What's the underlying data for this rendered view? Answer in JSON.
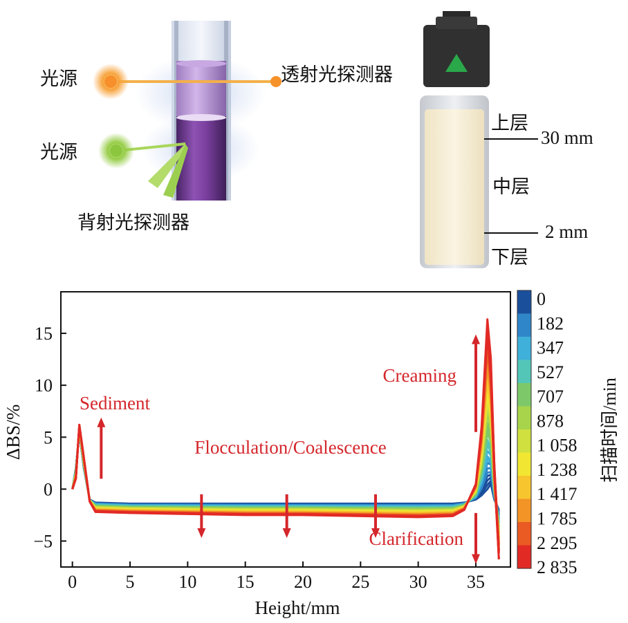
{
  "schematic": {
    "light_source_top": "光源",
    "light_source_bottom": "光源",
    "transmission_detector": "透射光探测器",
    "backscatter_detector": "背射光探测器",
    "vial_layers": {
      "upper": "上层",
      "middle": "中层",
      "lower": "下层",
      "mark_30": "30 mm",
      "mark_2": "2 mm"
    },
    "colors": {
      "tube_liquid": "#7a3f9e",
      "source_orange": "#f5922a",
      "source_green": "#8cc63f",
      "cap": "#333333",
      "cap_triangle": "#2aa84a",
      "emulsion": "#f7f0d8"
    }
  },
  "chart_data": {
    "type": "line",
    "xlabel": "Height/mm",
    "ylabel": "ΔBS/%",
    "xlim": [
      -1,
      38
    ],
    "ylim": [
      -7.5,
      19
    ],
    "x_ticks": [
      0,
      5,
      10,
      15,
      20,
      25,
      30,
      35
    ],
    "y_ticks": [
      -5,
      0,
      5,
      10,
      15
    ],
    "x_tick_labels": [
      "0",
      "5",
      "10",
      "15",
      "20",
      "25",
      "30",
      "35"
    ],
    "y_tick_labels": [
      "−5",
      "0",
      "5",
      "10",
      "15"
    ],
    "annotations": [
      {
        "text": "Sediment",
        "arrow": "up",
        "x": 2.5
      },
      {
        "text": "Flocculation/Coalescence",
        "arrow": "down",
        "x": [
          11.2,
          18.6,
          26.3
        ]
      },
      {
        "text": "Creaming",
        "arrow": "up",
        "x": 35
      },
      {
        "text": "Clarification",
        "arrow": "down",
        "x": 35
      }
    ],
    "colorbar": {
      "title": "扫描时间/min",
      "labels": [
        "0",
        "182",
        "347",
        "527",
        "707",
        "878",
        "1 058",
        "1 238",
        "1 417",
        "1 785",
        "2 295",
        "2 835"
      ],
      "colors": [
        "#1a4f9c",
        "#2f86c9",
        "#3fb0d9",
        "#53c6b8",
        "#7dc96a",
        "#a7d44a",
        "#cfe03f",
        "#f1e732",
        "#f7c52e",
        "#f39427",
        "#ea5a23",
        "#e22a25"
      ]
    },
    "series_profile": {
      "x": [
        0,
        0.3,
        0.6,
        1.0,
        1.5,
        2.0,
        5,
        10,
        15,
        20,
        25,
        30,
        33,
        34,
        35,
        35.5,
        36,
        36.3,
        36.6,
        37
      ],
      "start_curve": [
        0,
        2,
        5.5,
        2,
        -1,
        -1.3,
        -1.4,
        -1.4,
        -1.4,
        -1.4,
        -1.4,
        -1.4,
        -1.4,
        -1.3,
        -1.0,
        -0.6,
        0,
        0.5,
        -1.0,
        -2.0
      ],
      "end_curve": [
        0,
        1,
        6.2,
        3,
        -1.2,
        -2.2,
        -2.3,
        -2.4,
        -2.5,
        -2.5,
        -2.6,
        -2.7,
        -2.6,
        -2.0,
        0.5,
        6,
        16,
        12,
        2,
        -6.5
      ]
    }
  }
}
